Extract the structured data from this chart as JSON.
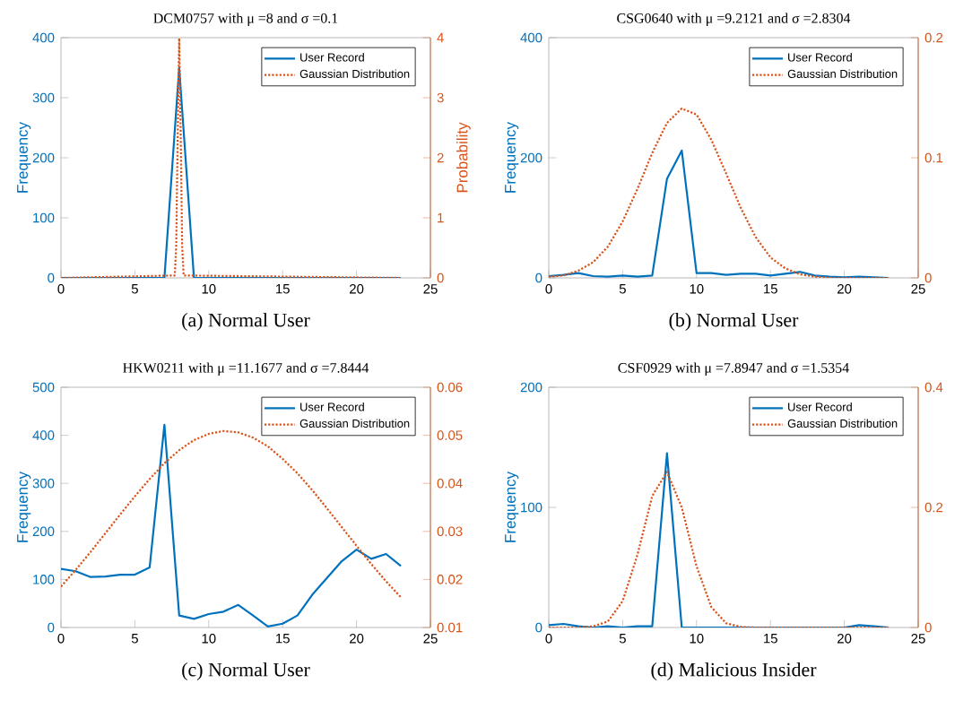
{
  "chart_data": [
    {
      "type": "line",
      "title": "DCM0757 with μ =8 and σ =0.1",
      "ylabel": "Frequency",
      "y2label": "Probability",
      "annotations": [
        "(a) Normal User"
      ],
      "xlim": [
        0,
        25
      ],
      "xticks": [
        0,
        5,
        10,
        15,
        20,
        25
      ],
      "ylim": [
        0,
        400
      ],
      "yticks": [
        0,
        100,
        200,
        300,
        400
      ],
      "y2lim": [
        0,
        4
      ],
      "y2ticks": [
        0,
        1,
        2,
        3,
        4
      ],
      "legend": "top right",
      "series": [
        {
          "name": "User Record",
          "color": "#0072bd",
          "line_style": "solid",
          "x": [
            0,
            1,
            2,
            3,
            4,
            5,
            6,
            7,
            8,
            9,
            10,
            11,
            12,
            13,
            14,
            15,
            16,
            17,
            18,
            19,
            20,
            21,
            22,
            23
          ],
          "values": [
            0,
            0,
            0,
            0,
            0,
            0,
            0,
            0,
            350,
            0,
            0,
            0,
            0,
            0,
            0,
            0,
            0,
            0,
            0,
            0,
            0,
            0,
            0,
            0
          ]
        },
        {
          "name": "Gaussian Distribution",
          "color": "#d95319",
          "line_style": "dotted",
          "axis": "y2",
          "x": [
            0,
            7.7,
            7.8,
            7.9,
            8,
            8.1,
            8.2,
            8.3,
            23
          ],
          "values": [
            0,
            0.04,
            0.54,
            2.42,
            3.99,
            2.42,
            0.54,
            0.04,
            0
          ]
        }
      ]
    },
    {
      "type": "line",
      "title": "CSG0640 with μ =9.2121 and σ =2.8304",
      "ylabel": "Frequency",
      "annotations": [
        "(b) Normal User"
      ],
      "xlim": [
        0,
        25
      ],
      "xticks": [
        0,
        5,
        10,
        15,
        20,
        25
      ],
      "ylim": [
        0,
        400
      ],
      "yticks": [
        0,
        200,
        400
      ],
      "y2lim": [
        0,
        0.2
      ],
      "y2ticks": [
        0,
        0.1,
        0.2
      ],
      "legend": "top right",
      "series": [
        {
          "name": "User Record",
          "color": "#0072bd",
          "line_style": "solid",
          "x": [
            0,
            1,
            2,
            3,
            4,
            5,
            6,
            7,
            8,
            9,
            10,
            11,
            12,
            13,
            14,
            15,
            16,
            17,
            18,
            19,
            20,
            21,
            22,
            23
          ],
          "values": [
            3,
            5,
            8,
            3,
            2,
            4,
            2,
            4,
            165,
            212,
            8,
            8,
            5,
            7,
            7,
            4,
            7,
            10,
            4,
            2,
            1,
            2,
            1,
            0
          ]
        },
        {
          "name": "Gaussian Distribution",
          "color": "#d95319",
          "line_style": "dotted",
          "axis": "y2",
          "x": [
            0,
            1,
            2,
            3,
            4,
            5,
            6,
            7,
            8,
            9,
            10,
            11,
            12,
            13,
            14,
            15,
            16,
            17,
            18,
            19,
            20,
            21,
            22,
            23
          ],
          "values": [
            0.001,
            0.002,
            0.006,
            0.013,
            0.026,
            0.047,
            0.074,
            0.104,
            0.129,
            0.141,
            0.136,
            0.115,
            0.087,
            0.058,
            0.034,
            0.017,
            0.008,
            0.003,
            0.001,
            0,
            0,
            0,
            0,
            0
          ]
        }
      ]
    },
    {
      "type": "line",
      "title": "HKW0211 with μ =11.1677 and σ =7.8444",
      "ylabel": "Frequency",
      "annotations": [
        "(c) Normal User"
      ],
      "xlim": [
        0,
        25
      ],
      "xticks": [
        0,
        5,
        10,
        15,
        20,
        25
      ],
      "ylim": [
        0,
        500
      ],
      "yticks": [
        0,
        100,
        200,
        300,
        400,
        500
      ],
      "y2lim": [
        0.01,
        0.06
      ],
      "y2ticks": [
        0.01,
        0.02,
        0.03,
        0.04,
        0.05,
        0.06
      ],
      "legend": "top right",
      "series": [
        {
          "name": "User Record",
          "color": "#0072bd",
          "line_style": "solid",
          "x": [
            0,
            1,
            2,
            3,
            4,
            5,
            6,
            7,
            8,
            9,
            10,
            11,
            12,
            13,
            14,
            15,
            16,
            17,
            18,
            19,
            20,
            21,
            22,
            23
          ],
          "values": [
            122,
            117,
            105,
            106,
            110,
            110,
            125,
            422,
            25,
            18,
            28,
            33,
            47,
            25,
            2,
            8,
            25,
            68,
            103,
            138,
            162,
            143,
            153,
            128
          ]
        },
        {
          "name": "Gaussian Distribution",
          "color": "#d95319",
          "line_style": "dotted",
          "axis": "y2",
          "x": [
            0,
            1,
            2,
            3,
            4,
            5,
            6,
            7,
            8,
            9,
            10,
            11,
            12,
            13,
            14,
            15,
            16,
            17,
            18,
            19,
            20,
            21,
            22,
            23
          ],
          "values": [
            0.0185,
            0.022,
            0.0257,
            0.0296,
            0.0335,
            0.0373,
            0.0409,
            0.0442,
            0.0469,
            0.049,
            0.0503,
            0.0509,
            0.0506,
            0.0495,
            0.0477,
            0.0451,
            0.0421,
            0.0386,
            0.0348,
            0.0309,
            0.027,
            0.0232,
            0.0196,
            0.0163
          ]
        }
      ]
    },
    {
      "type": "line",
      "title": "CSF0929 with μ =7.8947 and σ =1.5354",
      "ylabel": "Frequency",
      "annotations": [
        "(d) Malicious Insider"
      ],
      "xlim": [
        0,
        25
      ],
      "xticks": [
        0,
        5,
        10,
        15,
        20,
        25
      ],
      "ylim": [
        0,
        200
      ],
      "yticks": [
        0,
        100,
        200
      ],
      "y2lim": [
        0,
        0.4
      ],
      "y2ticks": [
        0,
        0.2,
        0.4
      ],
      "legend": "top right",
      "series": [
        {
          "name": "User Record",
          "color": "#0072bd",
          "line_style": "solid",
          "x": [
            0,
            1,
            2,
            3,
            4,
            5,
            6,
            7,
            8,
            9,
            10,
            11,
            12,
            13,
            14,
            15,
            16,
            17,
            18,
            19,
            20,
            21,
            22,
            23
          ],
          "values": [
            2,
            3,
            1,
            0,
            1,
            0,
            1,
            1,
            145,
            0,
            0,
            0,
            0,
            0,
            0,
            0,
            0,
            0,
            0,
            0,
            0,
            2,
            1,
            0
          ]
        },
        {
          "name": "Gaussian Distribution",
          "color": "#d95319",
          "line_style": "dotted",
          "axis": "y2",
          "x": [
            0,
            1,
            2,
            3,
            4,
            5,
            6,
            7,
            8,
            9,
            10,
            11,
            12,
            13,
            14,
            15,
            16,
            17,
            18,
            19,
            20,
            21,
            22,
            23
          ],
          "values": [
            0,
            0,
            0,
            0.002,
            0.01,
            0.044,
            0.121,
            0.219,
            0.259,
            0.2,
            0.102,
            0.034,
            0.007,
            0.001,
            0,
            0,
            0,
            0,
            0,
            0,
            0,
            0,
            0,
            0
          ]
        }
      ]
    }
  ]
}
